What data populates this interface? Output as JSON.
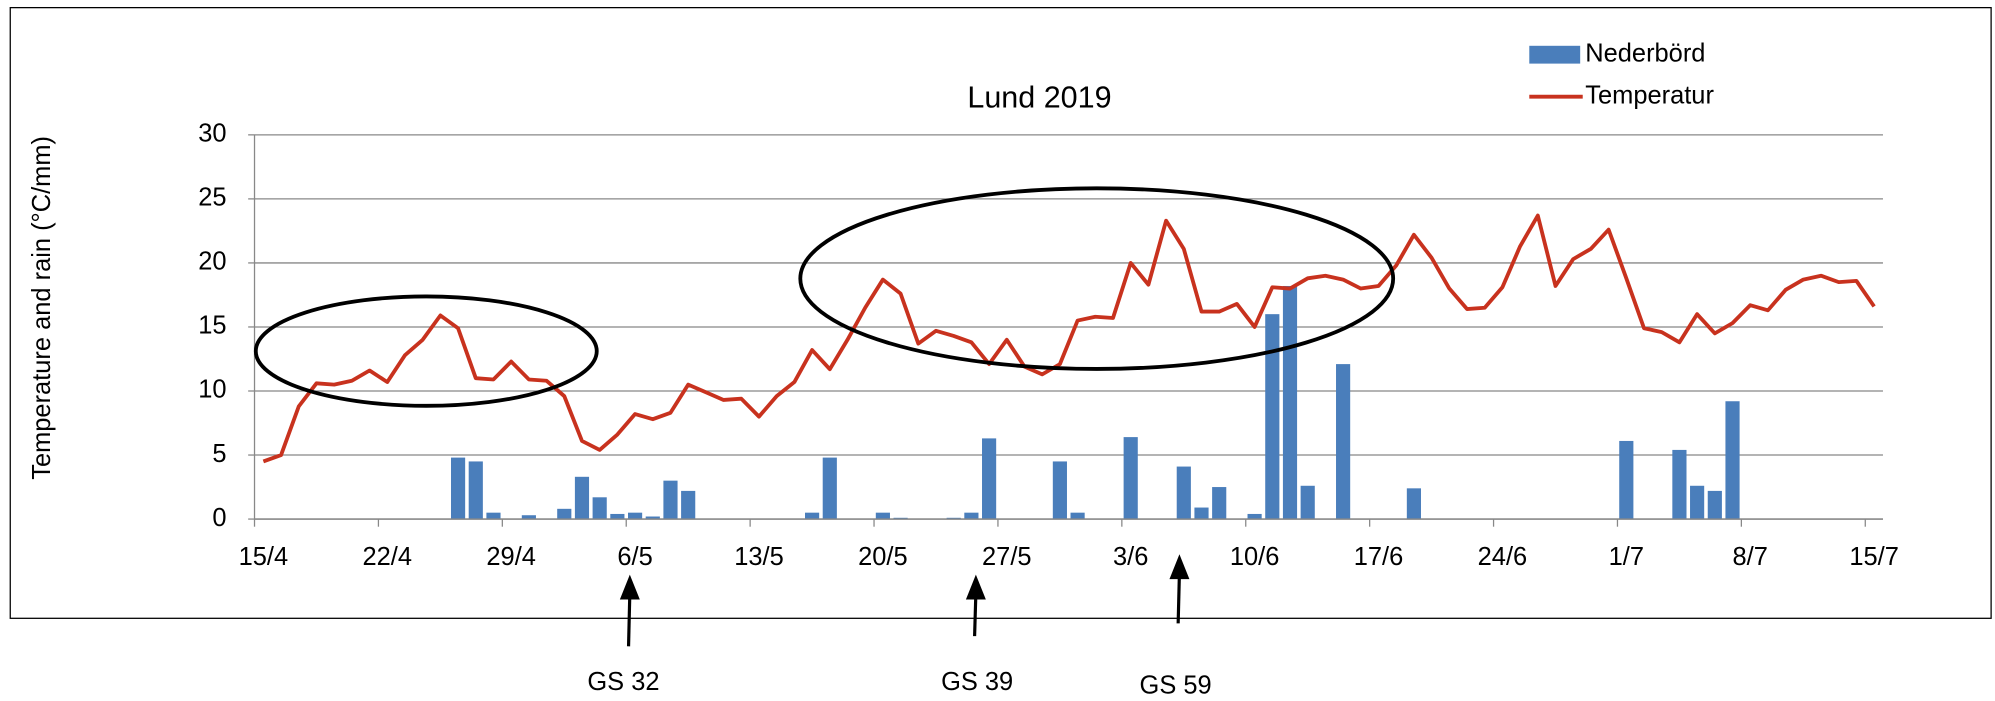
{
  "chart_data": {
    "type": "bar_line",
    "title": "Lund 2019",
    "y_label": "Temperature and rain (°C/mm)",
    "categories": [
      "15/4",
      null,
      null,
      null,
      null,
      null,
      null,
      "22/4",
      null,
      null,
      null,
      null,
      null,
      null,
      "29/4",
      null,
      null,
      null,
      null,
      null,
      null,
      "6/5",
      null,
      null,
      null,
      null,
      null,
      null,
      "13/5",
      null,
      null,
      null,
      null,
      null,
      null,
      "20/5",
      null,
      null,
      null,
      null,
      null,
      null,
      "27/5",
      null,
      null,
      null,
      null,
      null,
      null,
      "3/6",
      null,
      null,
      null,
      null,
      null,
      null,
      "10/6",
      null,
      null,
      null,
      null,
      null,
      null,
      "17/6",
      null,
      null,
      null,
      null,
      null,
      null,
      "24/6",
      null,
      null,
      null,
      null,
      null,
      null,
      "1/7",
      null,
      null,
      null,
      null,
      null,
      null,
      "8/7",
      null,
      null,
      null,
      null,
      null,
      null,
      "15/7"
    ],
    "series": [
      {
        "name": "Nederbörd",
        "kind": "bar",
        "color": "#4a7ebb",
        "values": [
          0,
          0,
          0,
          0,
          0,
          0,
          0,
          0,
          0,
          0,
          0,
          4.8,
          4.5,
          0.5,
          0,
          0.3,
          0,
          0.8,
          3.3,
          1.7,
          0.4,
          0.5,
          0.2,
          3,
          2.2,
          0,
          0,
          0,
          0,
          0,
          0,
          0.5,
          4.8,
          0,
          0,
          0.5,
          0.1,
          0,
          0,
          0.1,
          0.5,
          6.3,
          0,
          0,
          0,
          4.5,
          0.5,
          0,
          0,
          6.4,
          0,
          0,
          4.1,
          0.9,
          2.5,
          0,
          0.4,
          16,
          18.2,
          2.6,
          0,
          12.1,
          0,
          0,
          0,
          2.4,
          0,
          0,
          0,
          0,
          0,
          0,
          0,
          0,
          0,
          0,
          0,
          6.1,
          0,
          0,
          5.4,
          2.6,
          2.2,
          9.2,
          0,
          0,
          0,
          0,
          0,
          0,
          0,
          0
        ]
      },
      {
        "name": "Temperatur",
        "kind": "line",
        "color": "#c8321e",
        "values": [
          4.5,
          5,
          8.8,
          10.6,
          10.5,
          10.8,
          11.6,
          10.7,
          12.8,
          14,
          15.9,
          14.9,
          11,
          10.9,
          12.3,
          10.9,
          10.8,
          9.6,
          6.1,
          5.4,
          6.6,
          8.2,
          7.8,
          8.3,
          10.5,
          9.9,
          9.3,
          9.4,
          8,
          9.6,
          10.7,
          13.2,
          11.7,
          14,
          16.5,
          18.7,
          17.6,
          13.7,
          14.7,
          14.3,
          13.8,
          12.1,
          14,
          11.9,
          11.3,
          12.1,
          15.5,
          15.8,
          15.7,
          20,
          18.3,
          23.3,
          21.1,
          16.2,
          16.2,
          16.8,
          15,
          18.1,
          18,
          18.8,
          19,
          18.7,
          18,
          18.2,
          19.8,
          22.2,
          20.4,
          18,
          16.4,
          16.5,
          18.1,
          21.3,
          23.7,
          18.2,
          20.3,
          21.1,
          22.6,
          18.8,
          14.9,
          14.6,
          13.8,
          16,
          14.5,
          15.3,
          16.7,
          16.3,
          17.9,
          18.7,
          19,
          18.5,
          18.6,
          16.6
        ]
      }
    ],
    "ylim": [
      0,
      30
    ],
    "yticks": [
      0,
      5,
      10,
      15,
      20,
      25,
      30
    ],
    "grid": true,
    "legend": "top-right",
    "annotations": [
      "GS 32",
      "GS 39",
      "GS 59"
    ]
  }
}
